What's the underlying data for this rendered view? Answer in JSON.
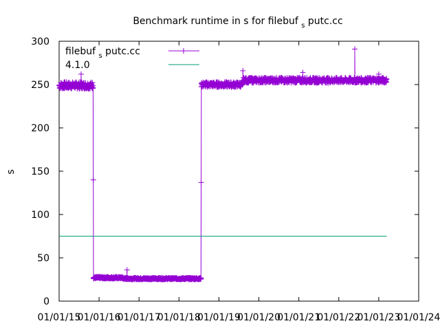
{
  "chart_data": {
    "type": "line",
    "title_parts": [
      "Benchmark runtime in s for filebuf",
      "s",
      "putc.cc"
    ],
    "ylabel": "s",
    "xlabel": "",
    "ylim": [
      0,
      300
    ],
    "yticks": [
      0,
      50,
      100,
      150,
      200,
      250,
      300
    ],
    "xticks": [
      "01/01/15",
      "01/01/16",
      "01/01/17",
      "01/01/18",
      "01/01/19",
      "01/01/20",
      "01/01/21",
      "01/01/22",
      "01/01/23",
      "01/01/24"
    ],
    "legend_placement": "top-left",
    "grid": false,
    "series": [
      {
        "name_parts": [
          "filebuf",
          "s",
          "putc.cc"
        ],
        "color": "#9400d3",
        "marker": "plus",
        "segments": [
          {
            "x_start": 2015.0,
            "x_end": 2015.85,
            "base": 249,
            "jitter": 4
          },
          {
            "x_start": 2015.85,
            "x_end": 2015.86,
            "values": [
              249,
              140,
              27
            ]
          },
          {
            "x_start": 2015.86,
            "x_end": 2016.6,
            "base": 27,
            "jitter": 1.2
          },
          {
            "x_start": 2016.6,
            "x_end": 2018.55,
            "base": 26,
            "jitter": 1
          },
          {
            "x_start": 2018.55,
            "x_end": 2018.56,
            "values": [
              26,
              137,
              251
            ]
          },
          {
            "x_start": 2018.56,
            "x_end": 2019.6,
            "base": 250,
            "jitter": 3
          },
          {
            "x_start": 2019.6,
            "x_end": 2023.2,
            "base": 255,
            "jitter": 3
          }
        ],
        "outliers": [
          {
            "x": 2015.55,
            "y": 262
          },
          {
            "x": 2016.7,
            "y": 36
          },
          {
            "x": 2019.6,
            "y": 266
          },
          {
            "x": 2021.1,
            "y": 264
          },
          {
            "x": 2022.4,
            "y": 291
          },
          {
            "x": 2023.0,
            "y": 262
          }
        ]
      },
      {
        "name": "4.1.0",
        "color": "#009e73",
        "marker": "none",
        "x_range": [
          2015.0,
          2023.2
        ],
        "y": 75
      }
    ]
  }
}
